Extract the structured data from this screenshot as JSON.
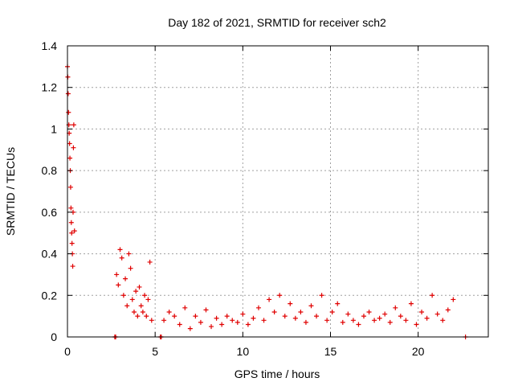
{
  "chart_data": {
    "type": "scatter",
    "title": "Day 182 of 2021, SRMTID for receiver sch2",
    "xlabel": "GPS time / hours",
    "ylabel": "SRMTID / TECUs",
    "xlim": [
      0,
      24
    ],
    "ylim": [
      0,
      1.4
    ],
    "xticks": [
      "0",
      "5",
      "10",
      "15",
      "20"
    ],
    "yticks": [
      "0",
      "0.2",
      "0.4",
      "0.6",
      "0.8",
      "1",
      "1.2",
      "1.4"
    ],
    "grid": true,
    "marker": "+",
    "color": "#e00000",
    "series": [
      {
        "name": "sch2",
        "x": [
          0.0,
          0.02,
          0.04,
          0.06,
          0.08,
          0.1,
          0.12,
          0.14,
          0.16,
          0.18,
          0.2,
          0.22,
          0.24,
          0.26,
          0.28,
          0.3,
          0.32,
          0.34,
          0.36,
          0.4,
          2.7,
          2.75,
          2.8,
          2.9,
          3.0,
          3.1,
          3.2,
          3.3,
          3.4,
          3.5,
          3.6,
          3.7,
          3.8,
          3.9,
          4.0,
          4.1,
          4.2,
          4.3,
          4.4,
          4.5,
          4.6,
          4.7,
          4.8,
          5.3,
          5.35,
          5.5,
          5.8,
          6.1,
          6.4,
          6.7,
          7.0,
          7.3,
          7.6,
          7.9,
          8.2,
          8.5,
          8.8,
          9.1,
          9.4,
          9.7,
          10.0,
          10.3,
          10.6,
          10.9,
          11.2,
          11.5,
          11.8,
          12.1,
          12.4,
          12.7,
          13.0,
          13.3,
          13.6,
          13.9,
          14.2,
          14.5,
          14.8,
          15.1,
          15.4,
          15.7,
          16.0,
          16.3,
          16.6,
          16.9,
          17.2,
          17.5,
          17.8,
          18.1,
          18.4,
          18.7,
          19.0,
          19.3,
          19.6,
          19.9,
          20.2,
          20.5,
          20.8,
          21.1,
          21.4,
          21.7,
          22.0,
          22.7
        ],
        "y": [
          1.3,
          1.25,
          1.17,
          1.08,
          1.02,
          0.98,
          0.93,
          0.86,
          0.8,
          0.72,
          0.62,
          0.55,
          0.5,
          0.45,
          0.4,
          0.34,
          0.6,
          0.91,
          1.02,
          0.51,
          0.0,
          0.0,
          0.3,
          0.25,
          0.42,
          0.38,
          0.2,
          0.28,
          0.15,
          0.4,
          0.33,
          0.18,
          0.12,
          0.22,
          0.1,
          0.24,
          0.15,
          0.12,
          0.2,
          0.1,
          0.18,
          0.36,
          0.08,
          0.0,
          0.0,
          0.08,
          0.12,
          0.1,
          0.06,
          0.14,
          0.04,
          0.1,
          0.07,
          0.13,
          0.05,
          0.09,
          0.06,
          0.1,
          0.08,
          0.07,
          0.11,
          0.06,
          0.09,
          0.14,
          0.08,
          0.18,
          0.12,
          0.2,
          0.1,
          0.16,
          0.09,
          0.12,
          0.07,
          0.15,
          0.1,
          0.2,
          0.08,
          0.12,
          0.16,
          0.07,
          0.11,
          0.08,
          0.06,
          0.1,
          0.12,
          0.08,
          0.09,
          0.11,
          0.07,
          0.14,
          0.1,
          0.08,
          0.16,
          0.06,
          0.12,
          0.09,
          0.2,
          0.11,
          0.08,
          0.13,
          0.18,
          0.0
        ]
      }
    ]
  }
}
